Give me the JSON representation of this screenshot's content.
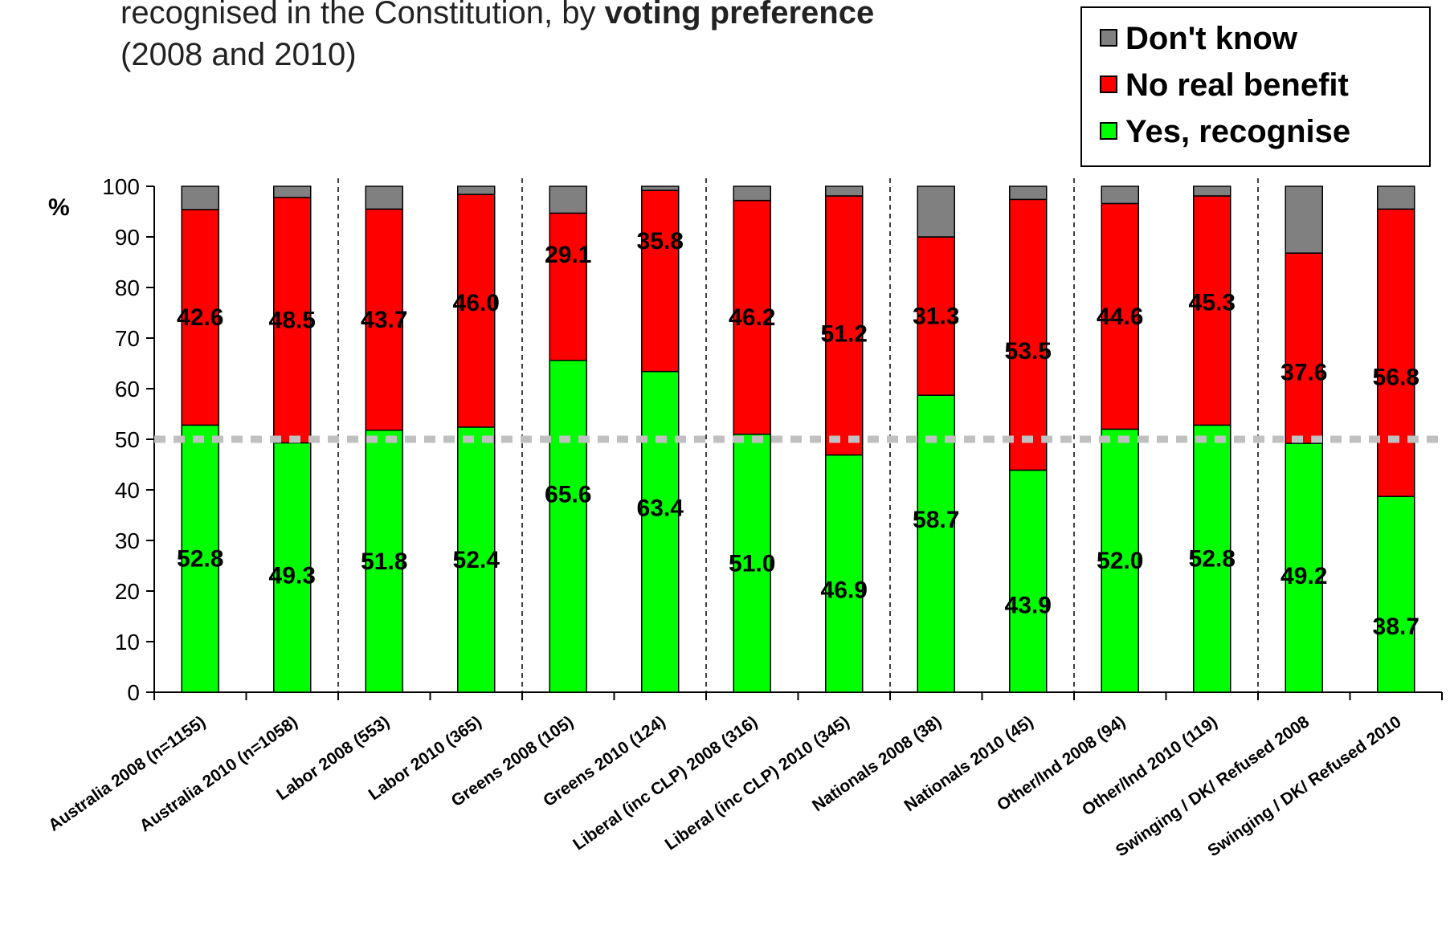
{
  "title": {
    "line1_plain": "recognised in the Constitution, by ",
    "line1_bold": "voting preference",
    "line2": "(2008 and 2010)"
  },
  "colors": {
    "yes": "#00ff00",
    "no": "#ff0000",
    "dk": "#808080",
    "ref_line": "#c0c0c0"
  },
  "chart_data": {
    "type": "bar",
    "stacked": true,
    "ylabel": "%",
    "ylim": [
      0,
      100
    ],
    "yticks": [
      0,
      10,
      20,
      30,
      40,
      50,
      60,
      70,
      80,
      90,
      100
    ],
    "reference_line": 50,
    "legend_position": "top-right",
    "categories": [
      "Australia 2008 (n=1155)",
      "Australia 2010 (n=1058)",
      "Labor 2008 (553)",
      "Labor 2010 (365)",
      "Greens 2008  (105)",
      "Greens 2010 (124)",
      "Liberal (inc CLP) 2008 (316)",
      "Liberal (inc CLP) 2010 (345)",
      "Nationals 2008 (38)",
      "Nationals 2010 (45)",
      "Other/Ind 2008 (94)",
      "Other/Ind 2010 (119)",
      "Swinging / DK/ Refused 2008",
      "Swinging / DK/ Refused 2010"
    ],
    "series": [
      {
        "name": "Yes, recognise",
        "color": "#00ff00",
        "values": [
          52.8,
          49.3,
          51.8,
          52.4,
          65.6,
          63.4,
          51.0,
          46.9,
          58.7,
          43.9,
          52.0,
          52.8,
          49.2,
          38.7
        ]
      },
      {
        "name": "No real benefit",
        "color": "#ff0000",
        "values": [
          42.6,
          48.5,
          43.7,
          46.0,
          29.1,
          35.8,
          46.2,
          51.2,
          31.3,
          53.5,
          44.6,
          45.3,
          37.6,
          56.8
        ]
      },
      {
        "name": "Don't know",
        "color": "#808080",
        "values": [
          4.6,
          2.2,
          4.5,
          1.6,
          5.3,
          0.8,
          2.8,
          1.9,
          10.0,
          2.6,
          3.4,
          1.9,
          13.2,
          4.5
        ]
      }
    ],
    "yes_labels": [
      "52.8",
      "49.3",
      "51.8",
      "52.4",
      "65.6",
      "63.4",
      "51.0",
      "46.9",
      "58.7",
      "43.9",
      "52.0",
      "52.8",
      "49.2",
      "38.7"
    ],
    "no_labels": [
      "42.6",
      "48.5",
      "43.7",
      "46.0",
      "29.1",
      "35.8",
      "46.2",
      "51.2",
      "31.3",
      "53.5",
      "44.6",
      "45.3",
      "37.6",
      "56.8"
    ]
  },
  "legend": {
    "items": [
      {
        "label": "Don't know",
        "color": "#808080"
      },
      {
        "label": "No real benefit",
        "color": "#ff0000"
      },
      {
        "label": "Yes, recognise",
        "color": "#00ff00"
      }
    ]
  }
}
